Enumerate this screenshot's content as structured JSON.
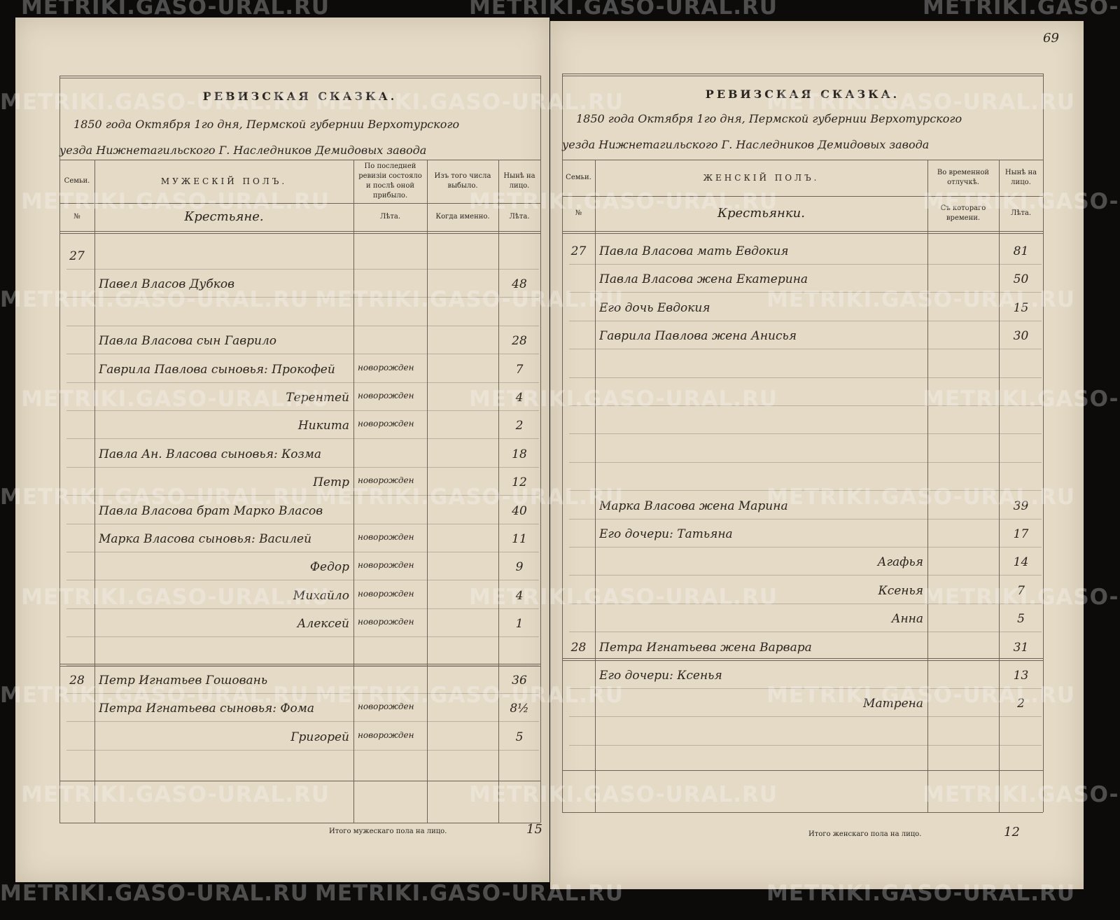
{
  "watermark": "METRIKI.GASO-URAL.RU",
  "page_number": "69",
  "left": {
    "title": "РЕВИЗСКАЯ СКАЗКА.",
    "heading_line_1": "1850 года Октября 1го дня, Пермской губернии Верхотурского",
    "heading_line_2": "уезда Нижнетагильского Г. Наследников Демидовых завода",
    "headers": [
      {
        "top": "Семьи.",
        "bottom": "№"
      },
      {
        "top": "МУЖЕСКІЙ ПОЛЪ.",
        "bottom": "Крестьяне."
      },
      {
        "top": "По последней ревизіи состояло и послѣ оной прибыло.",
        "bottom": "Лѣта."
      },
      {
        "top": "Изъ того числа выбыло.",
        "bottom": "Когда именно."
      },
      {
        "top": "Нынѣ на лицо.",
        "bottom": "Лѣта."
      }
    ],
    "rows": [
      {
        "family": "27"
      },
      {
        "name": "Павел Власов Дубков",
        "age": "48"
      },
      {
        "name": "Павла Власова сын Гаврило",
        "age": "28"
      },
      {
        "name": "Гаврила Павлова сыновья: Прокофей",
        "arrived": "новорожден",
        "age": "7"
      },
      {
        "name": "Терентей",
        "arrived": "новорожден",
        "age": "4"
      },
      {
        "name": "Никита",
        "arrived": "новорожден",
        "age": "2"
      },
      {
        "name": "Павла Ан. Власова сыновья: Козма",
        "age": "18"
      },
      {
        "name": "Петр",
        "arrived": "новорожден",
        "age": "12"
      },
      {
        "name": "Павла Власова брат Марко Власов",
        "age": "40"
      },
      {
        "name": "Марка Власова сыновья: Василей",
        "arrived": "новорожден",
        "age": "11"
      },
      {
        "name": "Федор",
        "arrived": "новорожден",
        "age": "9"
      },
      {
        "name": "Михайло",
        "arrived": "новорожден",
        "age": "4"
      },
      {
        "name": "Алексей",
        "arrived": "новорожден",
        "age": "1"
      },
      {
        "family": "28",
        "name": "Петр Игнатьев Гошовань",
        "age": "36"
      },
      {
        "name": "Петра Игнатьева сыновья: Фома",
        "arrived": "новорожден",
        "age": "8½"
      },
      {
        "name": "Григорей",
        "arrived": "новорожден",
        "age": "5"
      }
    ],
    "total_label": "Итого мужескаго пола на лицо.",
    "total": "15"
  },
  "right": {
    "title": "РЕВИЗСКАЯ СКАЗКА.",
    "heading_line_1": "1850 года Октября 1го дня, Пермской губернии Верхотурского",
    "heading_line_2": "уезда Нижнетагильского Г. Наследников Демидовых завода",
    "headers": [
      {
        "top": "Семьи.",
        "bottom": "№"
      },
      {
        "top": "ЖЕНСКІЙ ПОЛЪ.",
        "bottom": "Крестьянки."
      },
      {
        "top": "Во временной отлучкѣ.",
        "bottom": "Съ котораго времени."
      },
      {
        "top": "Нынѣ на лицо.",
        "bottom": "Лѣта."
      }
    ],
    "rows": [
      {
        "family": "27",
        "name": "Павла Власова мать Евдокия",
        "age": "81"
      },
      {
        "name": "Павла Власова жена Екатерина",
        "age": "50"
      },
      {
        "name": "Его дочь Евдокия",
        "age": "15"
      },
      {
        "name": "Гаврила Павлова жена Анисья",
        "age": "30"
      },
      {
        "name": "Марка Власова жена Марина",
        "age": "39"
      },
      {
        "name": "Его дочери: Татьяна",
        "age": "17"
      },
      {
        "name": "Агафья",
        "age": "14"
      },
      {
        "name": "Ксенья",
        "age": "7"
      },
      {
        "name": "Анна",
        "age": "5"
      },
      {
        "family": "28",
        "name": "Петра Игнатьева жена Варвара",
        "age": "31"
      },
      {
        "name": "Его дочери: Ксенья",
        "age": "13"
      },
      {
        "name": "Матрена",
        "age": "2"
      }
    ],
    "total_label": "Итого женскаго пола на лицо.",
    "total": "12"
  }
}
